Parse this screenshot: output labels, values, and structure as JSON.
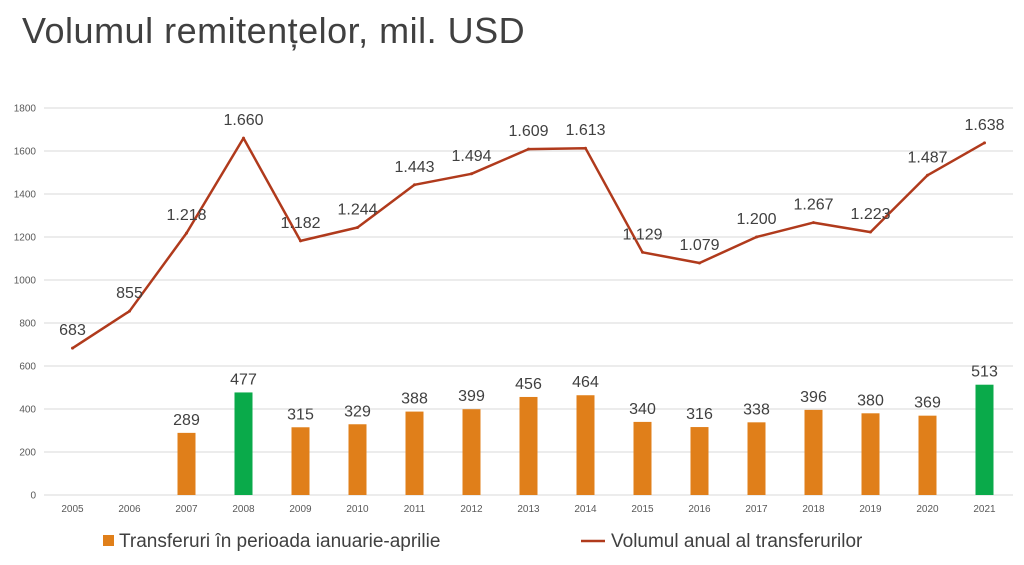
{
  "title": "Volumul remitențelor,  mil. USD",
  "chart_data": {
    "type": "bar",
    "categories": [
      "2005",
      "2006",
      "2007",
      "2008",
      "2009",
      "2010",
      "2011",
      "2012",
      "2013",
      "2014",
      "2015",
      "2016",
      "2017",
      "2018",
      "2019",
      "2020",
      "2021"
    ],
    "ylim": [
      0,
      1800
    ],
    "yticks": [
      0,
      200,
      400,
      600,
      800,
      1000,
      1200,
      1400,
      1600,
      1800
    ],
    "grid": true,
    "legend_position": "bottom",
    "series": [
      {
        "name": "Transferuri în perioada ianuarie-aprilie",
        "type": "bar",
        "color": "#E07F1A",
        "highlight_color": "#0AAA4A",
        "highlight_categories": [
          "2008",
          "2021"
        ],
        "values": [
          null,
          null,
          289,
          477,
          315,
          329,
          388,
          399,
          456,
          464,
          340,
          316,
          338,
          396,
          380,
          369,
          513
        ],
        "labels": [
          "",
          "",
          "289",
          "477",
          "315",
          "329",
          "388",
          "399",
          "456",
          "464",
          "340",
          "316",
          "338",
          "396",
          "380",
          "369",
          "513"
        ]
      },
      {
        "name": "Volumul anual al transferurilor",
        "type": "line",
        "color": "#B03A1C",
        "values": [
          683,
          855,
          1218,
          1660,
          1182,
          1244,
          1443,
          1494,
          1609,
          1613,
          1129,
          1079,
          1200,
          1267,
          1223,
          1487,
          1638
        ],
        "labels": [
          "683",
          "855",
          "1.218",
          "1.660",
          "1.182",
          "1.244",
          "1.443",
          "1.494",
          "1.609",
          "1.613",
          "1.129",
          "1.079",
          "1.200",
          "1.267",
          "1.223",
          "1.487",
          "1.638"
        ]
      }
    ]
  }
}
